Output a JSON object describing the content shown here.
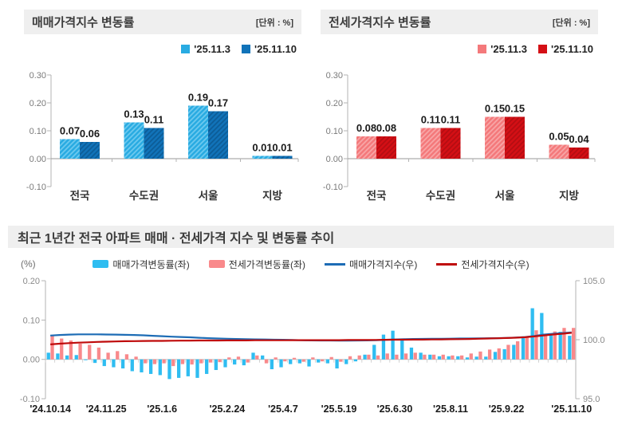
{
  "chart_data": [
    {
      "type": "bar",
      "title": "매매가격지수 변동률",
      "unit": "[단위 : %]",
      "categories": [
        "전국",
        "수도권",
        "서울",
        "지방"
      ],
      "yticks": [
        "0.30",
        "0.20",
        "0.10",
        "0.00",
        "-0.10"
      ],
      "ylim": [
        -0.1,
        0.3
      ],
      "series": [
        {
          "name": "'25.11.3",
          "values": [
            0.07,
            0.13,
            0.19,
            0.01
          ],
          "color": "#29abe2",
          "hatch": "#6cc9ef"
        },
        {
          "name": "'25.11.10",
          "values": [
            0.06,
            0.11,
            0.17,
            0.01
          ],
          "color": "#1173b9",
          "hatch": "#0c5d98"
        }
      ]
    },
    {
      "type": "bar",
      "title": "전세가격지수 변동률",
      "unit": "[단위 : %]",
      "categories": [
        "전국",
        "수도권",
        "서울",
        "지방"
      ],
      "yticks": [
        "0.30",
        "0.20",
        "0.10",
        "0.00",
        "-0.10"
      ],
      "ylim": [
        -0.1,
        0.3
      ],
      "series": [
        {
          "name": "'25.11.3",
          "values": [
            0.08,
            0.11,
            0.15,
            0.05
          ],
          "color": "#f4797b",
          "hatch": "#f8a5a6"
        },
        {
          "name": "'25.11.10",
          "values": [
            0.08,
            0.11,
            0.15,
            0.04
          ],
          "color": "#d40f15",
          "hatch": "#b50d12"
        }
      ]
    },
    {
      "type": "combo",
      "title": "최근 1년간 전국 아파트 매매 · 전세가격 지수 및 변동률 추이",
      "left_axis_label": "(%)",
      "left_yticks": [
        "0.20",
        "0.10",
        "0.00",
        "-0.10"
      ],
      "left_ylim": [
        -0.1,
        0.2
      ],
      "right_yticks": [
        "105.0",
        "100.0",
        "95.0"
      ],
      "right_ylim": [
        95.0,
        105.0
      ],
      "x_tick_labels": [
        "'24.10.14",
        "'24.11.25",
        "'25.1.6",
        "'25.2.24",
        "'25.4.7",
        "'25.5.19",
        "'25.6.30",
        "'25.8.11",
        "'25.9.22",
        "'25.11.10"
      ],
      "x_tick_indices": [
        0,
        6,
        12,
        19,
        25,
        31,
        37,
        43,
        49,
        56
      ],
      "series": [
        {
          "name": "매매가격변동률(좌)",
          "kind": "bar",
          "axis": "left",
          "color": "#2fbdf1",
          "values": [
            0.017,
            0.015,
            0.01,
            0.011,
            -0.002,
            -0.009,
            -0.017,
            -0.02,
            -0.023,
            -0.03,
            -0.033,
            -0.037,
            -0.04,
            -0.05,
            -0.047,
            -0.043,
            -0.047,
            -0.037,
            -0.027,
            -0.02,
            -0.013,
            -0.015,
            0.017,
            0.01,
            -0.025,
            -0.02,
            -0.012,
            -0.01,
            -0.018,
            -0.008,
            -0.01,
            -0.023,
            -0.012,
            -0.005,
            0.012,
            0.037,
            0.063,
            0.073,
            0.052,
            0.03,
            0.017,
            0.012,
            0.008,
            0.008,
            0.008,
            0.005,
            0.007,
            0.007,
            0.019,
            0.026,
            0.037,
            0.055,
            0.13,
            0.118,
            0.065,
            0.07,
            0.06
          ]
        },
        {
          "name": "전세가격변동률(좌)",
          "kind": "bar",
          "axis": "left",
          "color": "#f9898b",
          "values": [
            0.062,
            0.053,
            0.048,
            0.04,
            0.037,
            0.03,
            0.017,
            0.021,
            0.013,
            0.007,
            -0.01,
            -0.012,
            -0.01,
            -0.017,
            -0.012,
            -0.013,
            -0.01,
            -0.008,
            -0.007,
            0.005,
            0.007,
            -0.008,
            0.01,
            -0.01,
            0.005,
            -0.005,
            0.004,
            -0.006,
            0.005,
            -0.005,
            0.006,
            -0.006,
            0.008,
            0.01,
            0.012,
            0.01,
            0.015,
            0.012,
            0.015,
            0.017,
            0.012,
            0.012,
            0.012,
            0.01,
            0.01,
            0.015,
            0.02,
            0.025,
            0.028,
            0.037,
            0.046,
            0.055,
            0.074,
            0.064,
            0.071,
            0.08,
            0.08
          ]
        },
        {
          "name": "매매가격지수(우)",
          "kind": "line",
          "axis": "right",
          "color": "#1d6cb5",
          "values": [
            100.35,
            100.4,
            100.43,
            100.45,
            100.45,
            100.45,
            100.44,
            100.43,
            100.41,
            100.4,
            100.37,
            100.33,
            100.3,
            100.26,
            100.23,
            100.2,
            100.16,
            100.13,
            100.1,
            100.08,
            100.06,
            100.05,
            100.03,
            100.02,
            100.0,
            99.99,
            99.97,
            99.95,
            99.94,
            99.93,
            99.93,
            99.92,
            99.92,
            99.93,
            99.94,
            99.96,
            99.99,
            100.02,
            100.04,
            100.06,
            100.07,
            100.08,
            100.08,
            100.09,
            100.1,
            100.1,
            100.11,
            100.12,
            100.13,
            100.15,
            100.18,
            100.22,
            100.32,
            100.43,
            100.5,
            100.56,
            100.62
          ]
        },
        {
          "name": "전세가격지수(우)",
          "kind": "line",
          "axis": "right",
          "color": "#bf0a0a",
          "values": [
            99.6,
            99.66,
            99.71,
            99.75,
            99.78,
            99.81,
            99.83,
            99.85,
            99.87,
            99.88,
            99.89,
            99.9,
            99.9,
            99.91,
            99.92,
            99.92,
            99.93,
            99.93,
            99.93,
            99.94,
            99.94,
            99.94,
            99.95,
            99.95,
            99.95,
            99.95,
            99.96,
            99.96,
            99.96,
            99.96,
            99.96,
            99.96,
            99.97,
            99.97,
            99.97,
            99.98,
            99.99,
            100.0,
            100.0,
            100.01,
            100.01,
            100.02,
            100.03,
            100.04,
            100.05,
            100.06,
            100.08,
            100.1,
            100.12,
            100.14,
            100.17,
            100.21,
            100.28,
            100.36,
            100.44,
            100.51,
            100.58
          ]
        }
      ]
    }
  ]
}
